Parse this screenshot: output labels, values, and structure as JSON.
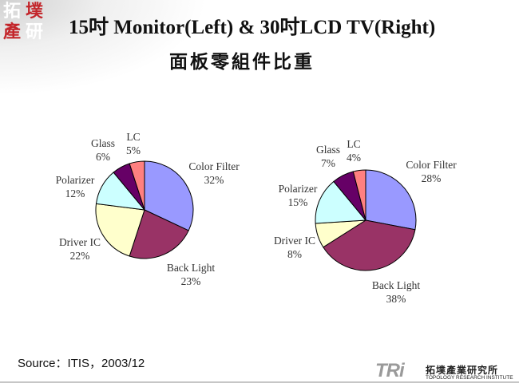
{
  "slide": {
    "title": "15吋 Monitor(Left) & 30吋LCD TV(Right)",
    "subtitle": "面板零組件比重",
    "source": "Source：ITIS，2003/12",
    "logo_chars": [
      "拓",
      "墣",
      "產",
      "研"
    ],
    "brand": {
      "mark": "TRi",
      "name_cn": "拓墣產業研究所",
      "name_en": "TOPOLOGY RESEARCH INSTITUTE"
    }
  },
  "chart_data": [
    {
      "type": "pie",
      "title": "",
      "slices": [
        {
          "name": "Color Filter",
          "value": 32,
          "label": "32%",
          "color": "#9999ff"
        },
        {
          "name": "Back Light",
          "value": 23,
          "label": "23%",
          "color": "#993366"
        },
        {
          "name": "Driver IC",
          "value": 22,
          "label": "22%",
          "color": "#ffffcc"
        },
        {
          "name": "Polarizer",
          "value": 12,
          "label": "12%",
          "color": "#ccffff"
        },
        {
          "name": "Glass",
          "value": 6,
          "label": "6%",
          "color": "#660066"
        },
        {
          "name": "LC",
          "value": 5,
          "label": "5%",
          "color": "#ff8080"
        }
      ]
    },
    {
      "type": "pie",
      "title": "",
      "slices": [
        {
          "name": "Color Filter",
          "value": 28,
          "label": "28%",
          "color": "#9999ff"
        },
        {
          "name": "Back Light",
          "value": 38,
          "label": "38%",
          "color": "#993366"
        },
        {
          "name": "Driver IC",
          "value": 8,
          "label": "8%",
          "color": "#ffffcc"
        },
        {
          "name": "Polarizer",
          "value": 15,
          "label": "15%",
          "color": "#ccffff"
        },
        {
          "name": "Glass",
          "value": 7,
          "label": "7%",
          "color": "#660066"
        },
        {
          "name": "LC",
          "value": 4,
          "label": "4%",
          "color": "#ff8080"
        }
      ]
    }
  ]
}
